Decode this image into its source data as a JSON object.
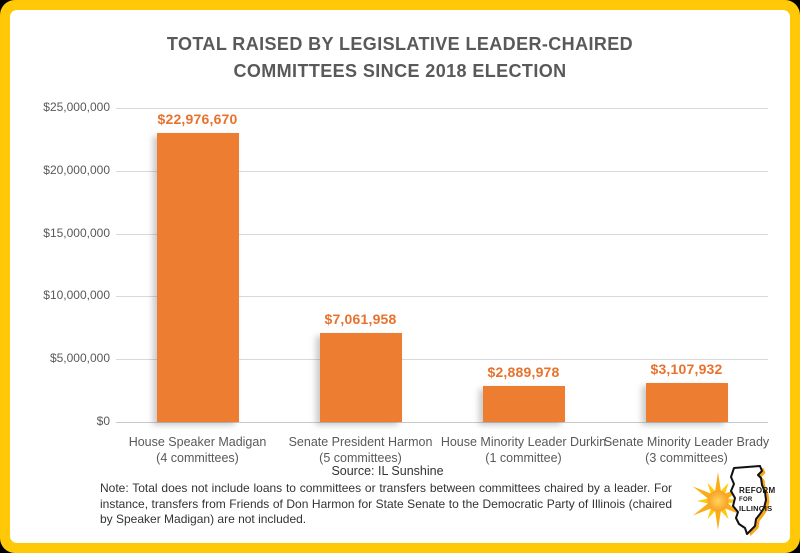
{
  "frame": {
    "border_color": "#FFC907",
    "corner_color": "#000000",
    "background": "#FFFFFF"
  },
  "title": {
    "line1": "TOTAL RAISED BY LEGISLATIVE LEADER-CHAIRED",
    "line2": "COMMITTEES SINCE 2018 ELECTION",
    "color": "#595959"
  },
  "chart_data": {
    "type": "bar",
    "title": "TOTAL RAISED BY LEGISLATIVE LEADER-CHAIRED COMMITTEES SINCE 2018 ELECTION",
    "categories": [
      "House Speaker Madigan",
      "Senate President Harmon",
      "House Minority Leader Durkin",
      "Senate Minority Leader Brady"
    ],
    "category_sublabels": [
      "(4 committees)",
      "(5 committees)",
      "(1 committee)",
      "(3 committees)"
    ],
    "values": [
      22976670,
      7061958,
      2889978,
      3107932
    ],
    "value_labels": [
      "$22,976,670",
      "$7,061,958",
      "$2,889,978",
      "$3,107,932"
    ],
    "xlabel": "",
    "ylabel": "",
    "ylim": [
      0,
      25000000
    ],
    "ytick_labels": [
      "$0",
      "$5,000,000",
      "$10,000,000",
      "$15,000,000",
      "$20,000,000",
      "$25,000,000"
    ],
    "grid": true,
    "legend": false,
    "bar_color": "#ED7D31",
    "value_label_color": "#E8722C"
  },
  "footer": {
    "source": "Source: IL Sunshine",
    "note": "Note: Total does not include loans to committees or transfers between committees chaired by a leader. For instance, transfers from Friends of Don Harmon for State Senate to the Democratic Party of Illinois (chaired by Speaker Madigan) are not included."
  },
  "logo": {
    "line1": "REFORM",
    "line2": "FOR",
    "line3": "ILLINOIS",
    "sun_color": "#FDB813",
    "gold": "#FFC907"
  }
}
